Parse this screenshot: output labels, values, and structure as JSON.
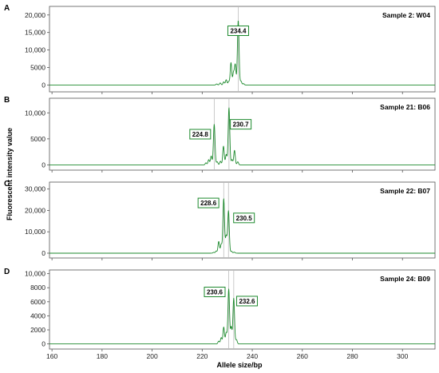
{
  "chart_data": [
    {
      "type": "line",
      "panel": "A",
      "sample": "Sample 2: W04",
      "xlim": [
        159,
        313
      ],
      "ylim": [
        -1500,
        22000
      ],
      "yticks": [
        0,
        5000,
        10000,
        15000,
        20000
      ],
      "ytick_labels": [
        "0",
        "5000",
        "10,000",
        "15,000",
        "20,000"
      ],
      "baseline": 0,
      "peaks": [
        {
          "x": 225.8,
          "y": 300,
          "w": 0.3
        },
        {
          "x": 227.2,
          "y": 600,
          "w": 0.3
        },
        {
          "x": 228.6,
          "y": 900,
          "w": 0.3
        },
        {
          "x": 229.6,
          "y": 1500,
          "w": 0.3
        },
        {
          "x": 230.6,
          "y": 1000,
          "w": 0.3
        },
        {
          "x": 231.5,
          "y": 6400,
          "w": 0.3
        },
        {
          "x": 232.5,
          "y": 3500,
          "w": 0.3
        },
        {
          "x": 233.2,
          "y": 5800,
          "w": 0.3
        },
        {
          "x": 234.4,
          "y": 18500,
          "w": 0.32
        },
        {
          "x": 235.5,
          "y": 1100,
          "w": 0.3
        },
        {
          "x": 236.5,
          "y": 400,
          "w": 0.3
        }
      ],
      "markers": [
        234.4
      ],
      "peak_labels": [
        {
          "text": "234.4",
          "x": 234.4,
          "y": 15500
        }
      ]
    },
    {
      "type": "line",
      "panel": "B",
      "sample": "Sample 21: B06",
      "xlim": [
        159,
        313
      ],
      "ylim": [
        -700,
        12500
      ],
      "yticks": [
        0,
        5000,
        10000
      ],
      "ytick_labels": [
        "0",
        "5000",
        "10,000"
      ],
      "baseline": 0,
      "peaks": [
        {
          "x": 221.5,
          "y": 400,
          "w": 0.3
        },
        {
          "x": 222.6,
          "y": 1000,
          "w": 0.3
        },
        {
          "x": 223.6,
          "y": 1700,
          "w": 0.3
        },
        {
          "x": 224.8,
          "y": 7800,
          "w": 0.32
        },
        {
          "x": 226.0,
          "y": 600,
          "w": 0.3
        },
        {
          "x": 227.3,
          "y": 700,
          "w": 0.3
        },
        {
          "x": 228.5,
          "y": 3600,
          "w": 0.3
        },
        {
          "x": 229.6,
          "y": 2000,
          "w": 0.3
        },
        {
          "x": 230.7,
          "y": 11000,
          "w": 0.32
        },
        {
          "x": 231.9,
          "y": 1000,
          "w": 0.3
        },
        {
          "x": 232.9,
          "y": 2800,
          "w": 0.3
        },
        {
          "x": 234.2,
          "y": 600,
          "w": 0.3
        }
      ],
      "markers": [
        224.8,
        230.7
      ],
      "peak_labels": [
        {
          "text": "224.8",
          "x": 219.2,
          "y": 5900
        },
        {
          "text": "230.7",
          "x": 235.4,
          "y": 7800
        }
      ]
    },
    {
      "type": "line",
      "panel": "C",
      "sample": "Sample 22: B07",
      "xlim": [
        159,
        313
      ],
      "ylim": [
        -1500,
        32500
      ],
      "yticks": [
        0,
        10000,
        20000,
        30000
      ],
      "ytick_labels": [
        "0",
        "10,000",
        "20,000",
        "30,000"
      ],
      "baseline": 0,
      "peaks": [
        {
          "x": 224.6,
          "y": 400,
          "w": 0.3
        },
        {
          "x": 225.6,
          "y": 1000,
          "w": 0.3
        },
        {
          "x": 226.6,
          "y": 5500,
          "w": 0.3
        },
        {
          "x": 227.6,
          "y": 4200,
          "w": 0.3
        },
        {
          "x": 228.6,
          "y": 25500,
          "w": 0.32
        },
        {
          "x": 229.6,
          "y": 8000,
          "w": 0.3
        },
        {
          "x": 230.5,
          "y": 19800,
          "w": 0.32
        },
        {
          "x": 231.7,
          "y": 900,
          "w": 0.3
        },
        {
          "x": 232.8,
          "y": 500,
          "w": 0.3
        }
      ],
      "markers": [
        228.6,
        230.5
      ],
      "peak_labels": [
        {
          "text": "228.6",
          "x": 222.5,
          "y": 23500
        },
        {
          "text": "230.5",
          "x": 236.7,
          "y": 16500
        }
      ]
    },
    {
      "type": "line",
      "panel": "D",
      "sample": "Sample 24: B09",
      "xlim": [
        159,
        313
      ],
      "ylim": [
        -500,
        10300
      ],
      "yticks": [
        0,
        2000,
        4000,
        6000,
        8000,
        10000
      ],
      "ytick_labels": [
        "0",
        "2000",
        "4000",
        "6000",
        "8000",
        "10,000"
      ],
      "baseline": 0,
      "peaks": [
        {
          "x": 226.6,
          "y": 400,
          "w": 0.3
        },
        {
          "x": 227.6,
          "y": 900,
          "w": 0.3
        },
        {
          "x": 228.6,
          "y": 2400,
          "w": 0.3
        },
        {
          "x": 229.6,
          "y": 1600,
          "w": 0.3
        },
        {
          "x": 230.6,
          "y": 7800,
          "w": 0.32
        },
        {
          "x": 231.6,
          "y": 2400,
          "w": 0.3
        },
        {
          "x": 232.6,
          "y": 6500,
          "w": 0.32
        },
        {
          "x": 233.7,
          "y": 600,
          "w": 0.3
        }
      ],
      "markers": [
        230.6,
        232.6
      ],
      "peak_labels": [
        {
          "text": "230.6",
          "x": 225.0,
          "y": 7400
        },
        {
          "text": "232.6",
          "x": 237.9,
          "y": 6100
        }
      ]
    }
  ],
  "xaxis": {
    "label": "Allele size/bp",
    "ticks": [
      160,
      180,
      200,
      220,
      240,
      260,
      280,
      300
    ],
    "tick_labels": [
      "160",
      "180",
      "200",
      "220",
      "240",
      "260",
      "280",
      "300"
    ]
  },
  "yaxis": {
    "label": "Fluorescent intensity value"
  },
  "colors": {
    "trace": "#1e8a2e",
    "marker": "#bdbdbd",
    "frame": "#555555",
    "label_border": "#1e8a2e"
  }
}
